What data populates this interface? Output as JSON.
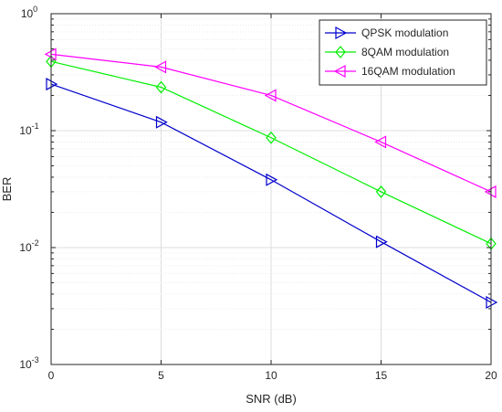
{
  "chart_data": {
    "type": "line",
    "xlabel": "SNR (dB)",
    "ylabel": "BER",
    "x": [
      0,
      5,
      10,
      15,
      20
    ],
    "xlim": [
      0,
      20
    ],
    "ylim": [
      0.001,
      1
    ],
    "yscale": "log",
    "grid": true,
    "minor_grid": true,
    "legend_position": "top-right",
    "x_ticks": [
      {
        "value": 0,
        "label": "0"
      },
      {
        "value": 5,
        "label": "5"
      },
      {
        "value": 10,
        "label": "10"
      },
      {
        "value": 15,
        "label": "15"
      },
      {
        "value": 20,
        "label": "20"
      }
    ],
    "y_ticks": [
      {
        "value": 0.001,
        "base": "10",
        "exp": "-3"
      },
      {
        "value": 0.01,
        "base": "10",
        "exp": "-2"
      },
      {
        "value": 0.1,
        "base": "10",
        "exp": "-1"
      },
      {
        "value": 1,
        "base": "10",
        "exp": "0"
      }
    ],
    "series": [
      {
        "name": "QPSK modulation",
        "color": "#0000cc",
        "marker": "triangle-right",
        "values": [
          0.25,
          0.118,
          0.038,
          0.0112,
          0.0034
        ]
      },
      {
        "name": "8QAM modulation",
        "color": "#00ee00",
        "marker": "diamond",
        "values": [
          0.39,
          0.235,
          0.087,
          0.03,
          0.0108
        ]
      },
      {
        "name": "16QAM modulation",
        "color": "#ff00ff",
        "marker": "triangle-left",
        "values": [
          0.45,
          0.35,
          0.2,
          0.08,
          0.03
        ]
      }
    ]
  }
}
